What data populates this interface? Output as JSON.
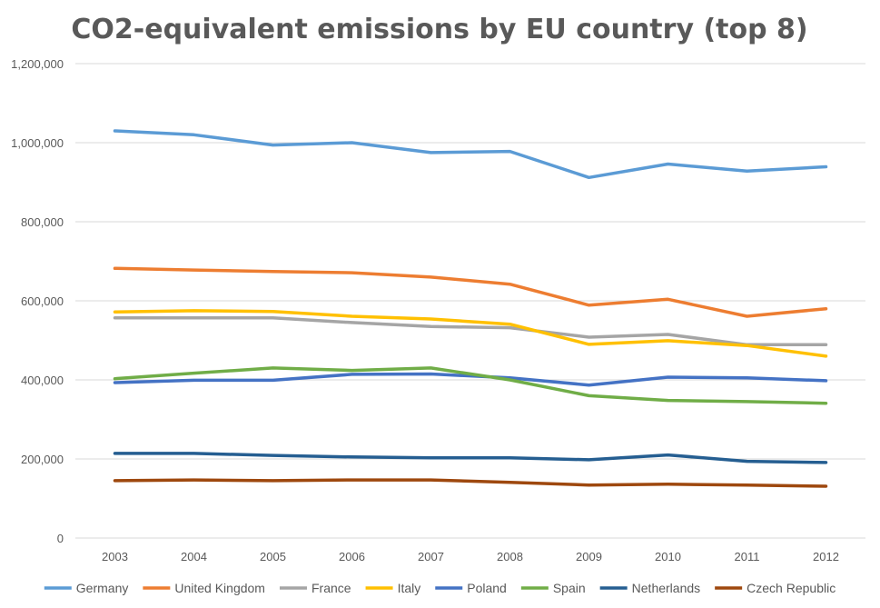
{
  "chart_data": {
    "type": "line",
    "title": "CO2-equivalent emissions by EU country (top 8)",
    "xlabel": "",
    "ylabel": "",
    "ylim": [
      0,
      1200000
    ],
    "yticks": [
      0,
      200000,
      400000,
      600000,
      800000,
      1000000,
      1200000
    ],
    "ytick_labels": [
      "0",
      "200,000",
      "400,000",
      "600,000",
      "800,000",
      "1,000,000",
      "1,200,000"
    ],
    "grid": true,
    "legend_position": "bottom",
    "x": [
      "2003",
      "2004",
      "2005",
      "2006",
      "2007",
      "2008",
      "2009",
      "2010",
      "2011",
      "2012"
    ],
    "series": [
      {
        "name": "Germany",
        "color": "#5b9bd5",
        "values": [
          1030000,
          1020000,
          994000,
          1000000,
          975000,
          978000,
          912000,
          946000,
          928000,
          939000
        ]
      },
      {
        "name": "United Kingdom",
        "color": "#ed7d31",
        "values": [
          682000,
          678000,
          674000,
          671000,
          660000,
          642000,
          589000,
          604000,
          561000,
          580000
        ]
      },
      {
        "name": "France",
        "color": "#a5a5a5",
        "values": [
          557000,
          557000,
          557000,
          545000,
          535000,
          532000,
          508000,
          515000,
          489000,
          489000
        ]
      },
      {
        "name": "Italy",
        "color": "#ffc000",
        "values": [
          572000,
          575000,
          573000,
          561000,
          554000,
          541000,
          490000,
          499000,
          487000,
          460000
        ]
      },
      {
        "name": "Poland",
        "color": "#4472c4",
        "values": [
          393000,
          399000,
          399000,
          414000,
          415000,
          405000,
          387000,
          407000,
          405000,
          398000
        ]
      },
      {
        "name": "Spain",
        "color": "#70ad47",
        "values": [
          403000,
          417000,
          430000,
          424000,
          430000,
          400000,
          360000,
          348000,
          345000,
          341000
        ]
      },
      {
        "name": "Netherlands",
        "color": "#255e91",
        "values": [
          214000,
          214000,
          209000,
          205000,
          203000,
          203000,
          198000,
          210000,
          194000,
          191000
        ]
      },
      {
        "name": "Czech Republic",
        "color": "#9e480e",
        "values": [
          145000,
          147000,
          145000,
          147000,
          147000,
          141000,
          134000,
          136000,
          134000,
          131000
        ]
      }
    ]
  }
}
